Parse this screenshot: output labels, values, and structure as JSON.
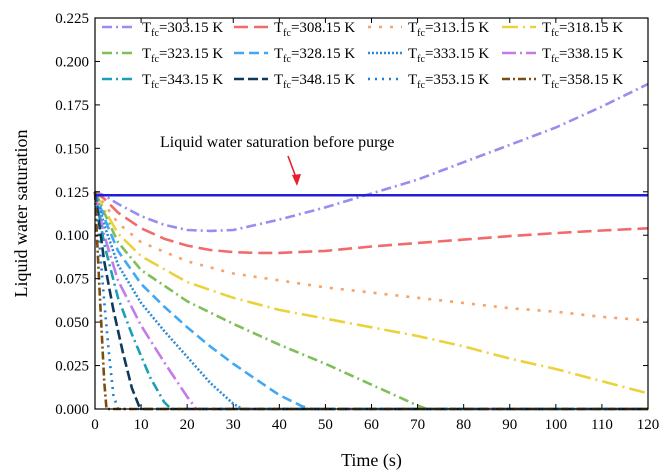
{
  "chart_data": {
    "type": "line",
    "title": "",
    "xlabel": "Time (s)",
    "ylabel": "Liquid water saturation",
    "xlim": [
      0,
      120
    ],
    "ylim": [
      0,
      0.225
    ],
    "xticks": [
      0,
      10,
      20,
      30,
      40,
      50,
      60,
      70,
      80,
      90,
      100,
      110,
      120
    ],
    "yticks": [
      "0.000",
      "0.025",
      "0.050",
      "0.075",
      "0.100",
      "0.125",
      "0.150",
      "0.175",
      "0.200",
      "0.225"
    ],
    "grid": false,
    "legend_position": "top",
    "reference_line": {
      "label": "Liquid water saturation before purge",
      "y": 0.123,
      "color": "#1f1fd8"
    },
    "series": [
      {
        "name": "T_fc=303.15 K",
        "color": "#9a8cf0",
        "dash": "10 4 2 4",
        "x": [
          0,
          2,
          5,
          10,
          15,
          20,
          25,
          30,
          40,
          50,
          60,
          70,
          80,
          90,
          100,
          110,
          120
        ],
        "y": [
          0.125,
          0.123,
          0.118,
          0.111,
          0.106,
          0.103,
          0.1025,
          0.103,
          0.109,
          0.116,
          0.124,
          0.132,
          0.142,
          0.152,
          0.162,
          0.174,
          0.187
        ]
      },
      {
        "name": "T_fc=308.15 K",
        "color": "#f26b6b",
        "dash": "14 6",
        "x": [
          0,
          2,
          5,
          10,
          15,
          20,
          25,
          30,
          35,
          40,
          50,
          60,
          70,
          80,
          90,
          100,
          110,
          120
        ],
        "y": [
          0.125,
          0.121,
          0.113,
          0.104,
          0.098,
          0.094,
          0.0915,
          0.0903,
          0.0898,
          0.0898,
          0.091,
          0.0935,
          0.0955,
          0.0975,
          0.0995,
          0.1012,
          0.1027,
          0.104
        ]
      },
      {
        "name": "T_fc=313.15 K",
        "color": "#f4a36a",
        "dash": "3 8",
        "x": [
          0,
          2,
          5,
          10,
          20,
          30,
          40,
          50,
          60,
          70,
          80,
          90,
          100,
          110,
          120
        ],
        "y": [
          0.125,
          0.118,
          0.107,
          0.096,
          0.085,
          0.078,
          0.074,
          0.07,
          0.067,
          0.064,
          0.061,
          0.058,
          0.056,
          0.053,
          0.051
        ]
      },
      {
        "name": "T_fc=318.15 K",
        "color": "#ecd23a",
        "dash": "16 5 2 5",
        "x": [
          0,
          2,
          5,
          10,
          20,
          30,
          40,
          50,
          60,
          70,
          80,
          90,
          100,
          110,
          120
        ],
        "y": [
          0.125,
          0.115,
          0.101,
          0.088,
          0.073,
          0.064,
          0.057,
          0.052,
          0.047,
          0.042,
          0.036,
          0.029,
          0.023,
          0.016,
          0.009
        ]
      },
      {
        "name": "T_fc=323.15 K",
        "color": "#7fbf5a",
        "dash": "10 4 2 4",
        "x": [
          0,
          2,
          5,
          10,
          20,
          30,
          40,
          50,
          60,
          65,
          70,
          72,
          120
        ],
        "y": [
          0.125,
          0.113,
          0.096,
          0.08,
          0.062,
          0.049,
          0.037,
          0.026,
          0.014,
          0.008,
          0.002,
          0.0,
          0.0
        ]
      },
      {
        "name": "T_fc=328.15 K",
        "color": "#3fa9f5",
        "dash": "10 5",
        "x": [
          0,
          2,
          5,
          10,
          15,
          20,
          25,
          30,
          35,
          40,
          45,
          47,
          120
        ],
        "y": [
          0.125,
          0.11,
          0.091,
          0.072,
          0.059,
          0.047,
          0.036,
          0.026,
          0.017,
          0.008,
          0.0015,
          0.0,
          0.0
        ]
      },
      {
        "name": "T_fc=333.15 K",
        "color": "#2e8bd6",
        "dash": "2 2",
        "x": [
          0,
          2,
          5,
          10,
          15,
          20,
          25,
          30,
          32,
          120
        ],
        "y": [
          0.125,
          0.106,
          0.083,
          0.061,
          0.045,
          0.03,
          0.015,
          0.003,
          0.0,
          0.0
        ]
      },
      {
        "name": "T_fc=338.15 K",
        "color": "#c27be8",
        "dash": "14 4 2 4",
        "x": [
          0,
          2,
          5,
          10,
          15,
          20,
          22,
          120
        ],
        "y": [
          0.125,
          0.1,
          0.074,
          0.048,
          0.027,
          0.007,
          0.0,
          0.0
        ]
      },
      {
        "name": "T_fc=343.15 K",
        "color": "#1a9fb8",
        "dash": "10 4 2 4",
        "x": [
          0,
          2,
          5,
          8,
          12,
          15,
          16.5,
          120
        ],
        "y": [
          0.125,
          0.095,
          0.064,
          0.043,
          0.018,
          0.004,
          0.0,
          0.0
        ]
      },
      {
        "name": "T_fc=348.15 K",
        "color": "#0d3a5c",
        "dash": "10 4",
        "x": [
          0,
          2,
          4,
          6,
          8,
          9.5,
          10,
          120
        ],
        "y": [
          0.125,
          0.085,
          0.057,
          0.033,
          0.012,
          0.002,
          0.0,
          0.0
        ]
      },
      {
        "name": "T_fc=353.15 K",
        "color": "#1e7fd0",
        "dash": "2 5",
        "x": [
          0,
          1,
          2,
          3,
          4,
          5,
          120
        ],
        "y": [
          0.125,
          0.094,
          0.062,
          0.033,
          0.008,
          0.0,
          0.0
        ]
      },
      {
        "name": "T_fc=358.15 K",
        "color": "#7a4e10",
        "dash": "8 3 2 3",
        "x": [
          0,
          0.5,
          1,
          1.5,
          2,
          2.5,
          120
        ],
        "y": [
          0.125,
          0.095,
          0.068,
          0.042,
          0.016,
          0.0,
          0.0
        ]
      }
    ]
  }
}
